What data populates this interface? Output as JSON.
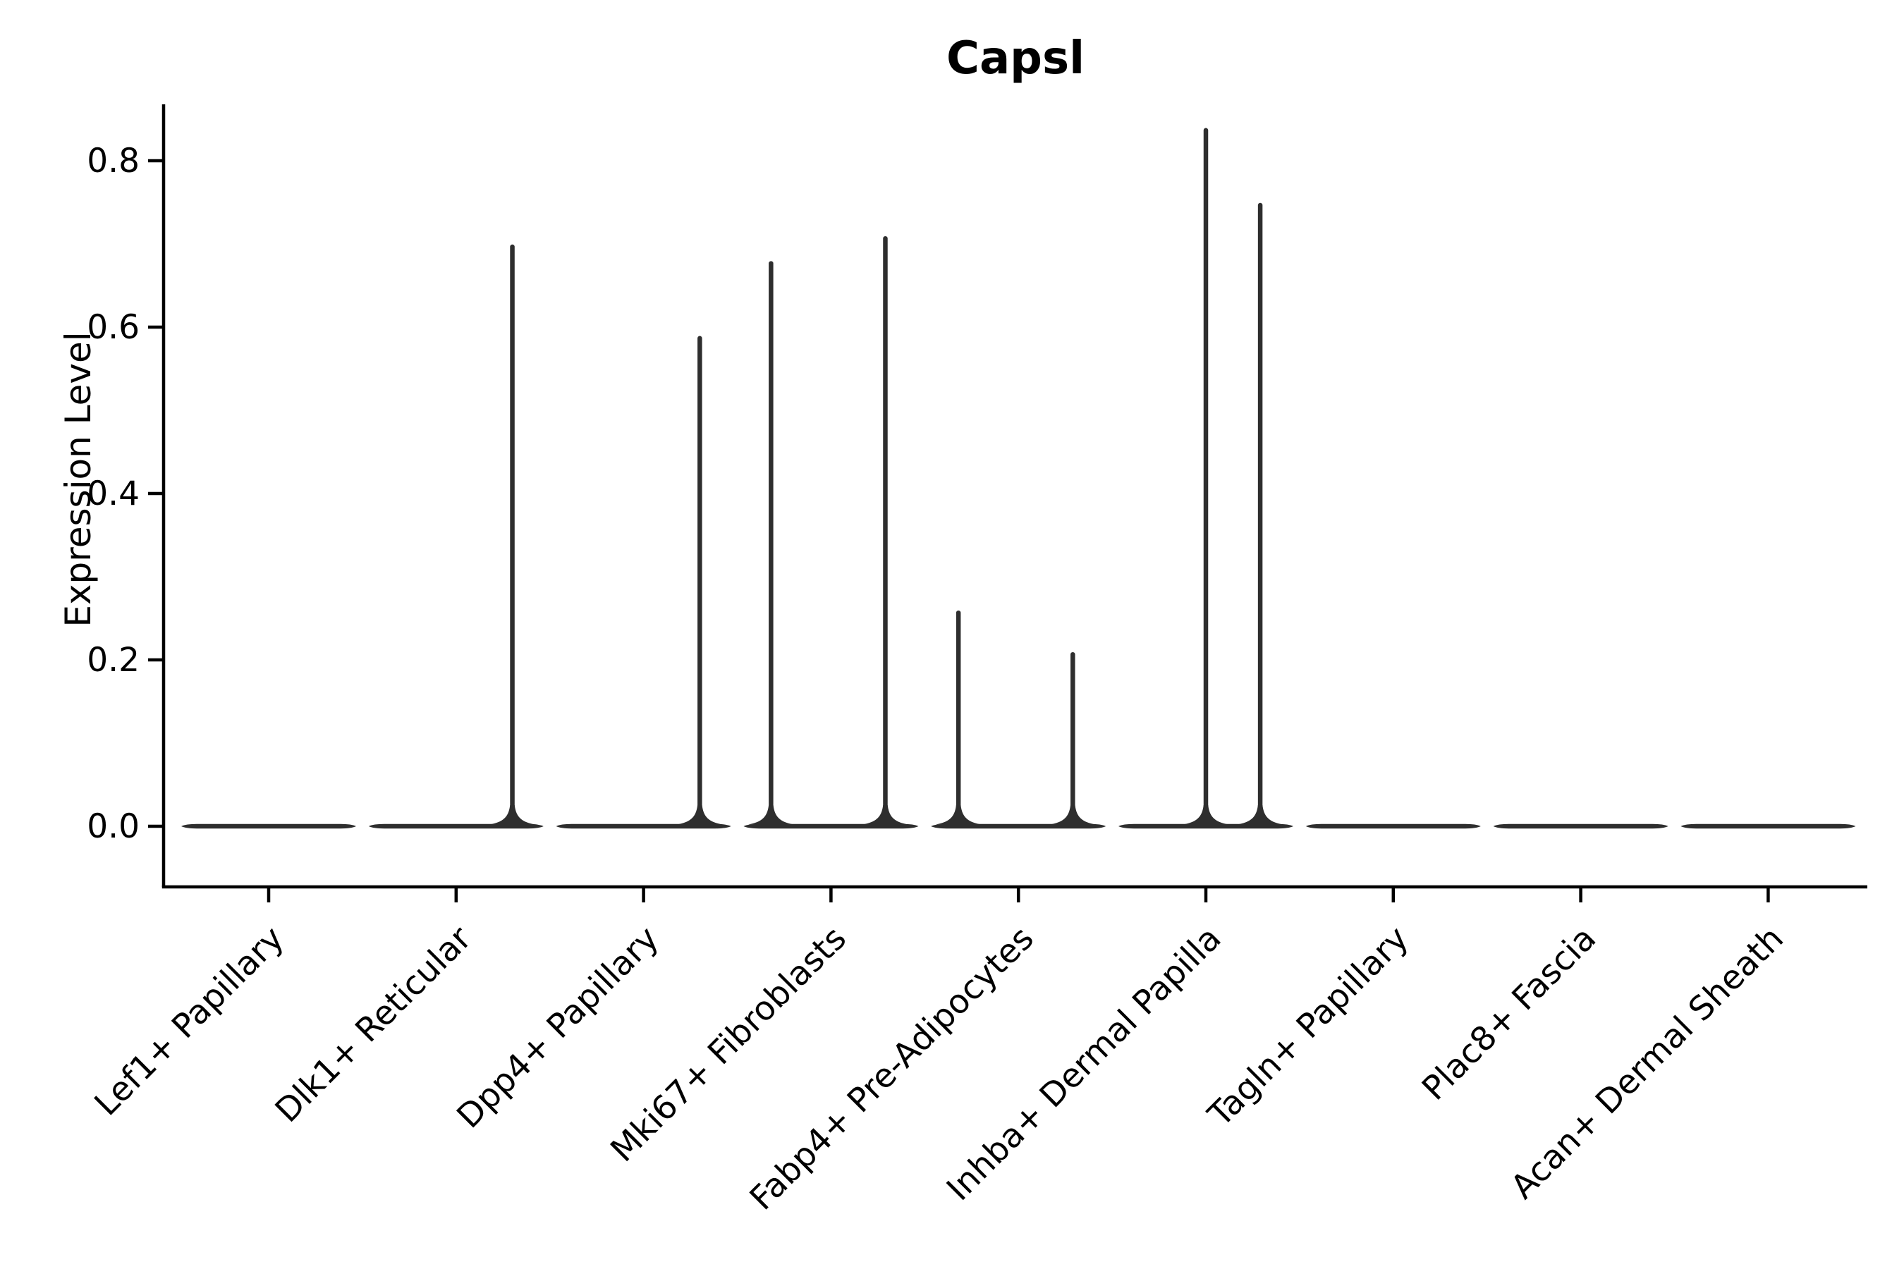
{
  "chart_data": {
    "type": "violin",
    "title": "Capsl",
    "xlabel": "",
    "ylabel": "Expression Level",
    "ylim": [
      -0.07,
      0.87
    ],
    "yticks": [
      "0.0",
      "0.2",
      "0.4",
      "0.6",
      "0.8"
    ],
    "ytick_values": [
      0.0,
      0.2,
      0.4,
      0.6,
      0.8
    ],
    "grid": false,
    "legend": null,
    "categories": [
      "Lef1+ Papillary",
      "Dlk1+ Reticular",
      "Dpp4+ Papillary",
      "Mki67+ Fibroblasts",
      "Fabp4+ Pre-Adipocytes",
      "Inhba+ Dermal Papilla",
      "Tagln+ Papillary",
      "Plac8+ Fascia",
      "Acan+ Dermal Sheath"
    ],
    "violins": [
      {
        "category": "Lef1+ Papillary",
        "zero_body": true,
        "spikes": []
      },
      {
        "category": "Dlk1+ Reticular",
        "zero_body": true,
        "spikes": [
          {
            "offset": 0.3,
            "value": 0.7
          }
        ]
      },
      {
        "category": "Dpp4+ Papillary",
        "zero_body": true,
        "spikes": [
          {
            "offset": 0.3,
            "value": 0.59
          }
        ]
      },
      {
        "category": "Mki67+ Fibroblasts",
        "zero_body": true,
        "spikes": [
          {
            "offset": -0.32,
            "value": 0.68
          },
          {
            "offset": 0.29,
            "value": 0.71
          }
        ]
      },
      {
        "category": "Fabp4+ Pre-Adipocytes",
        "zero_body": true,
        "spikes": [
          {
            "offset": -0.32,
            "value": 0.26
          },
          {
            "offset": 0.29,
            "value": 0.21
          }
        ]
      },
      {
        "category": "Inhba+ Dermal Papilla",
        "zero_body": true,
        "spikes": [
          {
            "offset": 0.0,
            "value": 0.84
          },
          {
            "offset": 0.29,
            "value": 0.75
          }
        ]
      },
      {
        "category": "Tagln+ Papillary",
        "zero_body": true,
        "spikes": []
      },
      {
        "category": "Plac8+ Fascia",
        "zero_body": true,
        "spikes": []
      },
      {
        "category": "Acan+ Dermal Sheath",
        "zero_body": true,
        "spikes": []
      }
    ],
    "colors": {
      "violin": "#2e2e2e",
      "axis": "#000000",
      "text": "#000000",
      "background": "#ffffff"
    }
  }
}
